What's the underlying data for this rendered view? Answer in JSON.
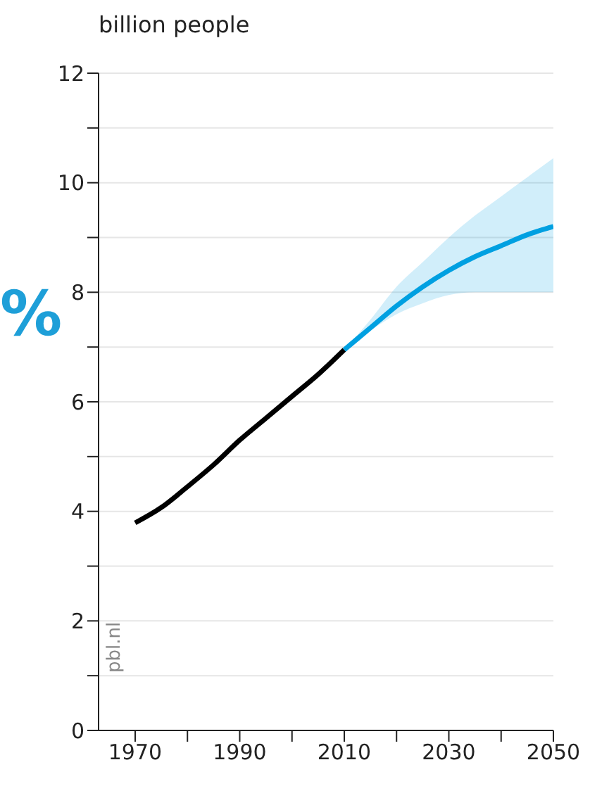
{
  "chart_data": {
    "type": "line",
    "ylabel": "billion people",
    "xlim": [
      1963,
      2050
    ],
    "xticks": [
      1970,
      {
        "value": 1980,
        "label": null
      },
      1990,
      {
        "value": 2000,
        "label": null
      },
      2010,
      {
        "value": 2020,
        "label": null
      },
      2030,
      {
        "value": 2040,
        "label": null
      },
      2050
    ],
    "ylim": [
      0,
      12
    ],
    "yticks": [
      0,
      {
        "value": 1,
        "label": null
      },
      2,
      {
        "value": 3,
        "label": null
      },
      4,
      {
        "value": 5,
        "label": null
      },
      6,
      {
        "value": 7,
        "label": null
      },
      8,
      {
        "value": 9,
        "label": null
      },
      10,
      {
        "value": 11,
        "label": null
      },
      12
    ],
    "grid": "y",
    "marker": "none",
    "line_style": "solid",
    "series": [
      {
        "color": "#000000",
        "x": [
          1970,
          1975,
          1980,
          1985,
          1990,
          1995,
          2000,
          2005,
          2010
        ],
        "values": [
          3.79,
          4.07,
          4.45,
          4.85,
          5.3,
          5.7,
          6.1,
          6.5,
          6.95
        ]
      },
      {
        "color": "#00a0e1",
        "x": [
          2010,
          2015,
          2020,
          2025,
          2030,
          2035,
          2040,
          2045,
          2050
        ],
        "values": [
          6.95,
          7.35,
          7.75,
          8.1,
          8.4,
          8.65,
          8.85,
          9.05,
          9.2
        ],
        "lower": [
          6.95,
          7.3,
          7.6,
          7.8,
          7.95,
          8.0,
          8.0,
          8.0,
          8.0
        ],
        "upper": [
          6.95,
          7.5,
          8.1,
          8.55,
          9.0,
          9.4,
          9.75,
          10.1,
          10.45
        ]
      }
    ],
    "annotations": [
      "pbl.nl",
      "%"
    ]
  }
}
